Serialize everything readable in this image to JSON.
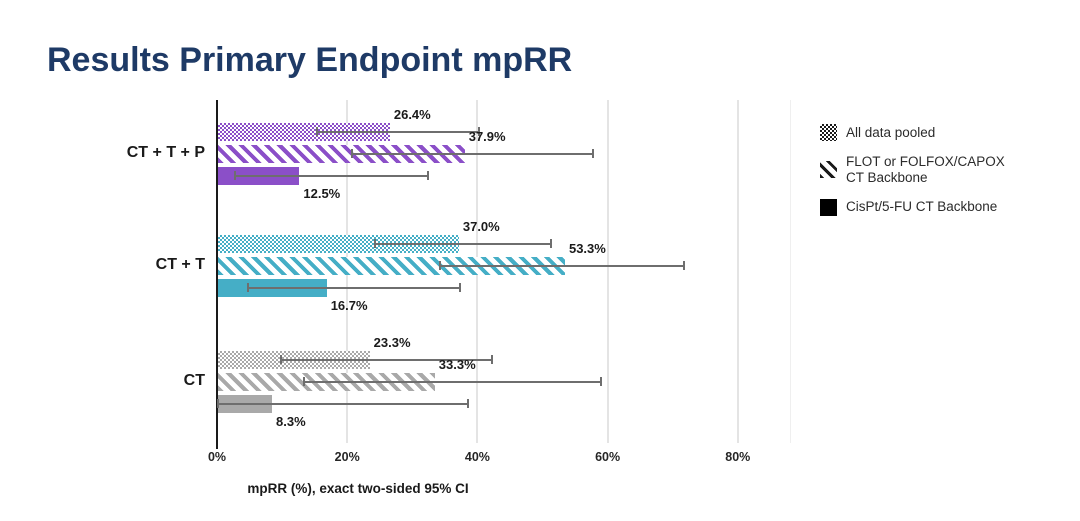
{
  "slide": {
    "title": "Results Primary Endpoint mpRR"
  },
  "chart_data": {
    "type": "bar",
    "orientation": "horizontal",
    "xlabel": "mpRR (%), exact two-sided 95% CI",
    "xlim": [
      0,
      88
    ],
    "grid": true,
    "legend_position": "right",
    "xticks": [
      {
        "pct": 0,
        "label": "0%"
      },
      {
        "pct": 20,
        "label": "20%"
      },
      {
        "pct": 40,
        "label": "40%"
      },
      {
        "pct": 60,
        "label": "60%"
      },
      {
        "pct": 80,
        "label": "80%"
      }
    ],
    "series_patterns": {
      "All data pooled": "crosshatch",
      "FLOT or FOLFOX/CAPOX CT Backbone": "diagonal",
      "CisPt/5-FU CT Backbone": "solid"
    },
    "groups": [
      {
        "label": "CT + T + P",
        "color": "#8B4FC8",
        "bars": [
          {
            "series": "All data pooled",
            "value": 26.4,
            "label": "26.4%",
            "ci": [
              15.3,
              40.3
            ]
          },
          {
            "series": "FLOT or FOLFOX/CAPOX CT Backbone",
            "value": 37.9,
            "label": "37.9%",
            "ci": [
              20.7,
              57.7
            ]
          },
          {
            "series": "CisPt/5-FU CT Backbone",
            "value": 12.5,
            "label": "12.5%",
            "ci": [
              2.7,
              32.4
            ]
          }
        ]
      },
      {
        "label": "CT + T",
        "color": "#45AEC6",
        "bars": [
          {
            "series": "All data pooled",
            "value": 37.0,
            "label": "37.0%",
            "ci": [
              24.3,
              51.3
            ]
          },
          {
            "series": "FLOT or FOLFOX/CAPOX CT Backbone",
            "value": 53.3,
            "label": "53.3%",
            "ci": [
              34.3,
              71.7
            ]
          },
          {
            "series": "CisPt/5-FU CT Backbone",
            "value": 16.7,
            "label": "16.7%",
            "ci": [
              4.7,
              37.4
            ]
          }
        ]
      },
      {
        "label": "CT",
        "color": "#A9A9A9",
        "bars": [
          {
            "series": "All data pooled",
            "value": 23.3,
            "label": "23.3%",
            "ci": [
              9.9,
              42.3
            ]
          },
          {
            "series": "FLOT or FOLFOX/CAPOX CT Backbone",
            "value": 33.3,
            "label": "33.3%",
            "ci": [
              13.3,
              59.0
            ]
          },
          {
            "series": "CisPt/5-FU CT Backbone",
            "value": 8.3,
            "label": "8.3%",
            "ci": [
              0.2,
              38.5
            ]
          }
        ]
      }
    ]
  },
  "legend": {
    "items": [
      {
        "label": "All data pooled",
        "pattern": "crosshatch"
      },
      {
        "label": "FLOT or FOLFOX/CAPOX\nCT Backbone",
        "pattern": "diagonal"
      },
      {
        "label": "CisPt/5-FU CT Backbone",
        "pattern": "solid"
      }
    ]
  },
  "colors": {
    "title": "#1E3A66",
    "error_bar": "#6E6E6E",
    "gridline": "#E4E4E4",
    "axis": "#1A1A1A",
    "text": "#1A1A1A"
  }
}
